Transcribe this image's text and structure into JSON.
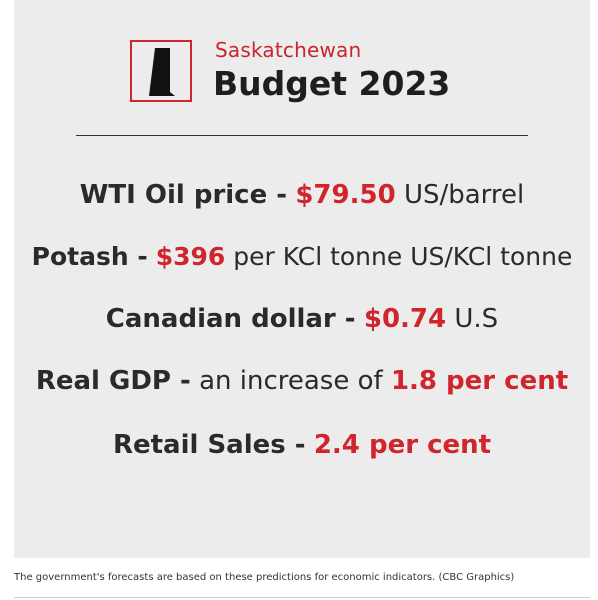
{
  "header": {
    "subtitle": "Saskatchewan",
    "title": "Budget 2023"
  },
  "indicators": [
    {
      "label": "WTI Oil price -",
      "value": "$79.50",
      "unit": "US/barrel"
    },
    {
      "label": "Potash -",
      "value": "$396",
      "unit": "per KCl tonne US/KCl tonne"
    },
    {
      "label": "Canadian dollar -",
      "value": "$0.74",
      "unit": "U.S"
    },
    {
      "label": "Real GDP -",
      "text": "an increase of",
      "value": "1.8 per cent"
    },
    {
      "label": "Retail Sales -",
      "value": "2.4 per cent"
    }
  ],
  "caption": "The government's forecasts are based on these predictions for economic indicators. (CBC Graphics)",
  "colors": {
    "accent": "#d0252d",
    "background": "#ececec",
    "text": "#2a2a2a"
  },
  "icons": {
    "logo": "saskatchewan-province-icon"
  }
}
